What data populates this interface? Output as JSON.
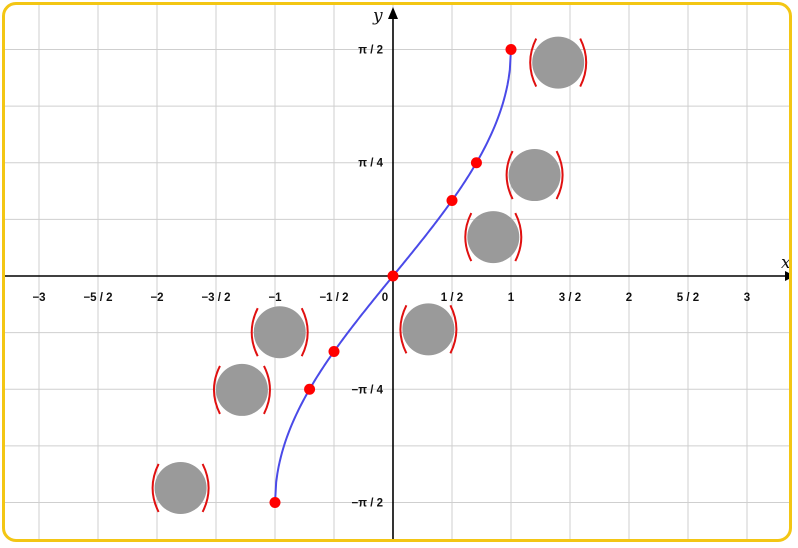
{
  "colors": {
    "frame": "#f3c614",
    "grid": "#cfcfcf",
    "axis": "#000000",
    "curve": "#4a4ae8",
    "point": "#ff0000",
    "placeholder": "#9a9a9a",
    "paren": "#e01010"
  },
  "chart_data": {
    "type": "line",
    "curve": "y = arcsin(x)",
    "xlabel": "x",
    "ylabel": "y",
    "xlim": [
      -3.25,
      3.4
    ],
    "ylim": [
      -1.8,
      2.2
    ],
    "x_ticks": [
      {
        "v": -3,
        "label": "−3"
      },
      {
        "v": -2.5,
        "label": "−5 / 2"
      },
      {
        "v": -2,
        "label": "−2"
      },
      {
        "v": -1.5,
        "label": "−3 / 2"
      },
      {
        "v": -1,
        "label": "−1"
      },
      {
        "v": -0.5,
        "label": "−1 / 2"
      },
      {
        "v": 0,
        "label": "0"
      },
      {
        "v": 0.5,
        "label": "1 / 2"
      },
      {
        "v": 1,
        "label": "1"
      },
      {
        "v": 1.5,
        "label": "3 / 2"
      },
      {
        "v": 2,
        "label": "2"
      },
      {
        "v": 2.5,
        "label": "5 / 2"
      },
      {
        "v": 3,
        "label": "3"
      }
    ],
    "y_ticks": [
      {
        "v": 1.5708,
        "label": "π / 2"
      },
      {
        "v": 0.7854,
        "label": "π / 4"
      },
      {
        "v": -0.7854,
        "label": "−π / 4"
      },
      {
        "v": -1.5708,
        "label": "−π / 2"
      }
    ],
    "points": [
      {
        "x": -1,
        "y": -1.5708
      },
      {
        "x": -0.7071,
        "y": -0.7854
      },
      {
        "x": -0.5,
        "y": -0.5236
      },
      {
        "x": 0,
        "y": 0
      },
      {
        "x": 0.5,
        "y": 0.5236
      },
      {
        "x": 0.7071,
        "y": 0.7854
      },
      {
        "x": 1,
        "y": 1.5708
      }
    ],
    "hidden_labels": [
      {
        "x": -1.8,
        "y": -1.47
      },
      {
        "x": -1.28,
        "y": -0.79
      },
      {
        "x": -0.96,
        "y": -0.39
      },
      {
        "x": 0.3,
        "y": -0.37
      },
      {
        "x": 0.85,
        "y": 0.27
      },
      {
        "x": 1.2,
        "y": 0.7
      },
      {
        "x": 1.4,
        "y": 1.48
      }
    ]
  }
}
